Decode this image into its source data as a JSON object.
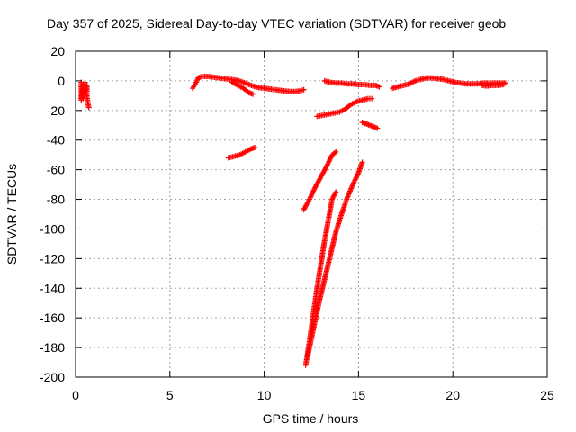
{
  "chart_data": {
    "type": "scatter",
    "title": "Day 357 of 2025, Sidereal Day-to-day VTEC variation (SDTVAR) for receiver geob",
    "xlabel": "GPS time / hours",
    "ylabel": "SDTVAR / TECUs",
    "xlim": [
      0,
      25
    ],
    "ylim": [
      -200,
      20
    ],
    "xticks": [
      0,
      5,
      10,
      15,
      20,
      25
    ],
    "yticks": [
      20,
      0,
      -20,
      -40,
      -60,
      -80,
      -100,
      -120,
      -140,
      -160,
      -180,
      -200
    ],
    "grid": true,
    "legend": "none",
    "marker": "+",
    "color": "#ff0000",
    "series": [
      {
        "points": [
          [
            0.3,
            -1
          ],
          [
            0.3,
            -3
          ],
          [
            0.3,
            -5
          ],
          [
            0.3,
            -7
          ],
          [
            0.3,
            -9
          ],
          [
            0.3,
            -11
          ],
          [
            0.3,
            -13
          ],
          [
            0.4,
            -2
          ],
          [
            0.4,
            -4
          ],
          [
            0.4,
            -6
          ],
          [
            0.4,
            -8
          ],
          [
            0.4,
            -10
          ],
          [
            0.4,
            -12
          ],
          [
            0.5,
            -1
          ],
          [
            0.5,
            -5
          ],
          [
            0.5,
            -9
          ],
          [
            0.6,
            -3
          ],
          [
            0.6,
            -7
          ],
          [
            0.6,
            -11
          ],
          [
            0.7,
            -18
          ]
        ]
      },
      {
        "points": [
          [
            6.2,
            -5
          ],
          [
            6.3,
            -3
          ],
          [
            6.4,
            -1
          ],
          [
            6.5,
            2
          ],
          [
            6.7,
            3
          ],
          [
            7.0,
            3
          ],
          [
            7.3,
            2.5
          ],
          [
            7.6,
            2
          ],
          [
            7.9,
            1.5
          ],
          [
            8.2,
            1
          ],
          [
            8.5,
            0.5
          ],
          [
            8.8,
            -0.5
          ],
          [
            9.1,
            -2
          ],
          [
            9.4,
            -3.5
          ],
          [
            9.7,
            -4.5
          ],
          [
            10.0,
            -5
          ],
          [
            10.3,
            -5.5
          ],
          [
            10.6,
            -6
          ],
          [
            10.9,
            -6.5
          ],
          [
            11.2,
            -7
          ],
          [
            11.5,
            -7.3
          ],
          [
            11.8,
            -7
          ],
          [
            12.1,
            -6
          ]
        ]
      },
      {
        "points": [
          [
            8.3,
            -1
          ],
          [
            8.6,
            -3
          ],
          [
            8.9,
            -5
          ],
          [
            9.2,
            -8
          ],
          [
            9.4,
            -9
          ]
        ]
      },
      {
        "points": [
          [
            8.1,
            -52
          ],
          [
            8.4,
            -51
          ],
          [
            8.7,
            -50
          ],
          [
            9.0,
            -48
          ],
          [
            9.3,
            -46
          ],
          [
            9.5,
            -45
          ]
        ]
      },
      {
        "points": [
          [
            12.8,
            -24
          ],
          [
            13.2,
            -23
          ],
          [
            13.6,
            -22
          ],
          [
            14.0,
            -21
          ],
          [
            14.3,
            -19
          ],
          [
            14.6,
            -16
          ],
          [
            14.9,
            -14
          ],
          [
            15.2,
            -13
          ],
          [
            15.5,
            -12
          ],
          [
            15.7,
            -12
          ]
        ]
      },
      {
        "points": [
          [
            13.2,
            0
          ],
          [
            13.5,
            -1
          ],
          [
            13.8,
            -1.5
          ],
          [
            14.1,
            -1.5
          ],
          [
            14.4,
            -2
          ],
          [
            14.7,
            -2
          ],
          [
            15.0,
            -2.5
          ],
          [
            15.3,
            -2.5
          ],
          [
            15.6,
            -3
          ],
          [
            15.9,
            -3
          ],
          [
            16.1,
            -4
          ]
        ]
      },
      {
        "points": [
          [
            15.2,
            -28
          ],
          [
            15.4,
            -29
          ],
          [
            15.6,
            -30
          ],
          [
            15.8,
            -31
          ],
          [
            16.0,
            -32
          ]
        ]
      },
      {
        "points": [
          [
            12.1,
            -87
          ],
          [
            12.4,
            -80
          ],
          [
            12.7,
            -72
          ],
          [
            13.0,
            -65
          ],
          [
            13.3,
            -58
          ],
          [
            13.6,
            -50
          ],
          [
            13.8,
            -48
          ]
        ]
      },
      {
        "points": [
          [
            12.2,
            -192
          ],
          [
            12.4,
            -176
          ],
          [
            12.6,
            -158
          ],
          [
            12.8,
            -140
          ],
          [
            13.0,
            -124
          ],
          [
            13.2,
            -108
          ],
          [
            13.4,
            -94
          ],
          [
            13.6,
            -80
          ],
          [
            13.8,
            -75
          ]
        ]
      },
      {
        "points": [
          [
            12.3,
            -186
          ],
          [
            12.6,
            -168
          ],
          [
            12.9,
            -150
          ],
          [
            13.2,
            -134
          ],
          [
            13.5,
            -118
          ],
          [
            13.8,
            -102
          ],
          [
            14.1,
            -90
          ],
          [
            14.4,
            -79
          ],
          [
            14.7,
            -70
          ],
          [
            15.0,
            -62
          ],
          [
            15.2,
            -55
          ]
        ]
      },
      {
        "points": [
          [
            16.8,
            -5
          ],
          [
            17.1,
            -4
          ],
          [
            17.4,
            -3
          ],
          [
            17.7,
            -2
          ],
          [
            18.0,
            0
          ],
          [
            18.3,
            1
          ],
          [
            18.6,
            2
          ],
          [
            18.9,
            2
          ],
          [
            19.2,
            1.5
          ],
          [
            19.5,
            1
          ],
          [
            19.8,
            0
          ],
          [
            20.1,
            -1
          ],
          [
            20.4,
            -1.5
          ],
          [
            20.7,
            -2
          ],
          [
            21.0,
            -2
          ],
          [
            21.3,
            -2
          ],
          [
            21.6,
            -1.5
          ],
          [
            21.9,
            -1.5
          ],
          [
            22.2,
            -1.5
          ],
          [
            22.5,
            -1.5
          ],
          [
            22.8,
            -1.5
          ]
        ]
      },
      {
        "points": [
          [
            21.5,
            -3
          ],
          [
            21.8,
            -3.5
          ],
          [
            22.1,
            -3
          ],
          [
            22.4,
            -3
          ],
          [
            22.7,
            -2.5
          ]
        ]
      }
    ]
  }
}
